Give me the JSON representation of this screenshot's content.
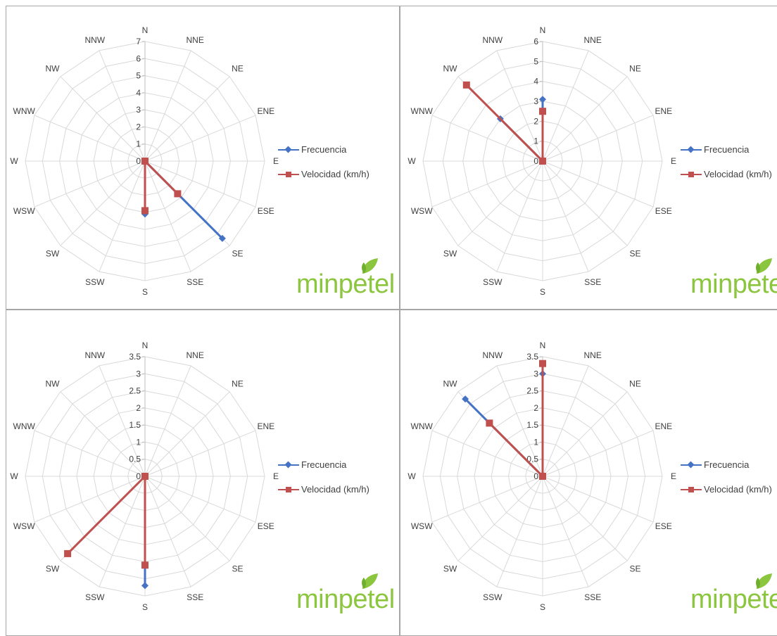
{
  "colors": {
    "frecuencia": "#4472c4",
    "velocidad": "#c0504d",
    "grid": "#d9d9d9",
    "text": "#404040",
    "logo": "#8cc63f"
  },
  "logo_text": "minpetel",
  "legend": {
    "frecuencia": "Frecuencia",
    "velocidad": "Velocidad (km/h)"
  },
  "chart_data": [
    {
      "type": "radar",
      "directions": [
        "N",
        "NNE",
        "NE",
        "ENE",
        "E",
        "ESE",
        "SE",
        "SSE",
        "S",
        "SSW",
        "SW",
        "WSW",
        "W",
        "WNW",
        "NW",
        "NNW"
      ],
      "tick_labels": [
        "0",
        "1",
        "2",
        "3",
        "4",
        "5",
        "6",
        "7"
      ],
      "rmax": 7,
      "series": [
        {
          "name": "Frecuencia",
          "values": [
            0,
            0,
            0,
            0,
            0,
            0,
            6.4,
            0,
            3.1,
            0,
            0,
            0,
            0,
            0,
            0,
            0
          ]
        },
        {
          "name": "Velocidad (km/h)",
          "values": [
            0,
            0,
            0,
            0,
            0,
            0,
            2.7,
            0,
            2.9,
            0,
            0,
            0,
            0,
            0,
            0,
            0
          ]
        }
      ]
    },
    {
      "type": "radar",
      "directions": [
        "N",
        "NNE",
        "NE",
        "ENE",
        "E",
        "ESE",
        "SE",
        "SSE",
        "S",
        "SSW",
        "SW",
        "WSW",
        "W",
        "WNW",
        "NW",
        "NNW"
      ],
      "tick_labels": [
        "0",
        "1",
        "2",
        "3",
        "4",
        "5",
        "6"
      ],
      "rmax": 6,
      "series": [
        {
          "name": "Frecuencia",
          "values": [
            3.1,
            0,
            0,
            0,
            0,
            0,
            0,
            0,
            0,
            0,
            0,
            0,
            0,
            0,
            3.0,
            0
          ]
        },
        {
          "name": "Velocidad (km/h)",
          "values": [
            2.5,
            0,
            0,
            0,
            0,
            0,
            0,
            0,
            0,
            0,
            0,
            0,
            0,
            0,
            5.4,
            0
          ]
        }
      ]
    },
    {
      "type": "radar",
      "directions": [
        "N",
        "NNE",
        "NE",
        "ENE",
        "E",
        "ESE",
        "SE",
        "SSE",
        "S",
        "SSW",
        "SW",
        "WSW",
        "W",
        "WNW",
        "NW",
        "NNW"
      ],
      "tick_labels": [
        "0",
        "0.5",
        "1",
        "1.5",
        "2",
        "2.5",
        "3",
        "3.5"
      ],
      "rmax": 3.5,
      "series": [
        {
          "name": "Frecuencia",
          "values": [
            0,
            0,
            0,
            0,
            0,
            0,
            0,
            0,
            3.2,
            0,
            0,
            0,
            0,
            0,
            0,
            0
          ]
        },
        {
          "name": "Velocidad (km/h)",
          "values": [
            0,
            0,
            0,
            0,
            0,
            0,
            0,
            0,
            2.6,
            0,
            3.2,
            0,
            0,
            0,
            0,
            0
          ]
        }
      ]
    },
    {
      "type": "radar",
      "directions": [
        "N",
        "NNE",
        "NE",
        "ENE",
        "E",
        "ESE",
        "SE",
        "SSE",
        "S",
        "SSW",
        "SW",
        "WSW",
        "W",
        "WNW",
        "NW",
        "NNW"
      ],
      "tick_labels": [
        "0",
        "0.5",
        "1",
        "1.5",
        "2",
        "2.5",
        "3",
        "3.5"
      ],
      "rmax": 3.5,
      "series": [
        {
          "name": "Frecuencia",
          "values": [
            3.0,
            0,
            0,
            0,
            0,
            0,
            0,
            0,
            0,
            0,
            0,
            0,
            0,
            0,
            3.2,
            0
          ]
        },
        {
          "name": "Velocidad (km/h)",
          "values": [
            3.3,
            0,
            0,
            0,
            0,
            0,
            0,
            0,
            0,
            0,
            0,
            0,
            0,
            0,
            2.2,
            0
          ]
        }
      ]
    }
  ]
}
